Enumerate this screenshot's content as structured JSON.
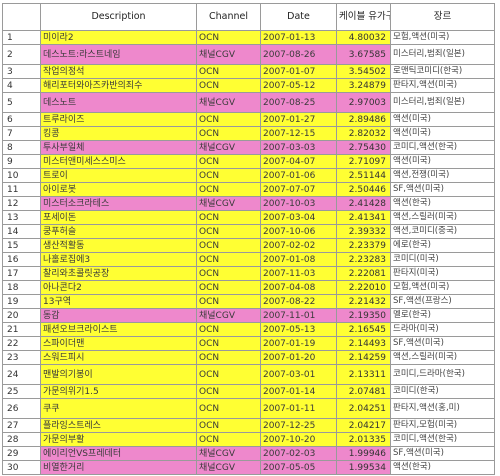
{
  "headers": {
    "num": "",
    "description": "Description",
    "channel": "Channel",
    "date": "Date",
    "rating": "케이블 유가구",
    "genre": "장르"
  },
  "colors": {
    "yellow": "#ffff33",
    "pink": "#ee88cc",
    "border": "#9a9a9a"
  },
  "rows": [
    {
      "num": "1",
      "description": "미이라2",
      "channel": "OCN",
      "date": "2007-01-13",
      "rating": "4.80032",
      "genre": "모험,액션(미국)",
      "color": "yellow"
    },
    {
      "num": "2",
      "description": "데스노트:라스트네임",
      "channel": "채널CGV",
      "date": "2007-08-26",
      "rating": "3.67585",
      "genre": "미스터리,범죄(일본)",
      "color": "pink",
      "tall": true
    },
    {
      "num": "3",
      "description": "작업의정석",
      "channel": "OCN",
      "date": "2007-01-07",
      "rating": "3.54502",
      "genre": "로맨틱코미디(한국)",
      "color": "yellow"
    },
    {
      "num": "4",
      "description": "해리포터와아즈카반의죄수",
      "channel": "OCN",
      "date": "2007-05-12",
      "rating": "3.24879",
      "genre": "판타지,액션(미국)",
      "color": "yellow"
    },
    {
      "num": "5",
      "description": "데스노트",
      "channel": "채널CGV",
      "date": "2007-08-25",
      "rating": "2.97003",
      "genre": "미스터리,범죄(일본)",
      "color": "pink",
      "tall": true
    },
    {
      "num": "6",
      "description": "트루라이즈",
      "channel": "OCN",
      "date": "2007-01-27",
      "rating": "2.89486",
      "genre": "액션(미국)",
      "color": "yellow"
    },
    {
      "num": "7",
      "description": "킹콩",
      "channel": "OCN",
      "date": "2007-12-15",
      "rating": "2.82032",
      "genre": "액션(미국)",
      "color": "yellow"
    },
    {
      "num": "8",
      "description": "투사부일체",
      "channel": "채널CGV",
      "date": "2007-03-03",
      "rating": "2.75430",
      "genre": "코미디,액션(한국)",
      "color": "pink"
    },
    {
      "num": "9",
      "description": "미스터앤미세스스미스",
      "channel": "OCN",
      "date": "2007-04-07",
      "rating": "2.71097",
      "genre": "액션(미국)",
      "color": "yellow"
    },
    {
      "num": "10",
      "description": "트로이",
      "channel": "OCN",
      "date": "2007-01-06",
      "rating": "2.51144",
      "genre": "액션,전쟁(미국)",
      "color": "yellow"
    },
    {
      "num": "11",
      "description": "아이로봇",
      "channel": "OCN",
      "date": "2007-07-07",
      "rating": "2.50446",
      "genre": "SF,액션(미국)",
      "color": "yellow"
    },
    {
      "num": "12",
      "description": "미스터소크라테스",
      "channel": "채널CGV",
      "date": "2007-10-03",
      "rating": "2.41428",
      "genre": "액션(한국)",
      "color": "pink"
    },
    {
      "num": "13",
      "description": "포세이돈",
      "channel": "OCN",
      "date": "2007-03-04",
      "rating": "2.41341",
      "genre": "액션,스릴러(미국)",
      "color": "yellow"
    },
    {
      "num": "14",
      "description": "쿵푸허슬",
      "channel": "OCN",
      "date": "2007-10-06",
      "rating": "2.39332",
      "genre": "액션,코미디(중국)",
      "color": "yellow"
    },
    {
      "num": "15",
      "description": "생산적활동",
      "channel": "OCN",
      "date": "2007-02-02",
      "rating": "2.23379",
      "genre": "에로(한국)",
      "color": "yellow"
    },
    {
      "num": "16",
      "description": "나홀로집에3",
      "channel": "OCN",
      "date": "2007-01-08",
      "rating": "2.23283",
      "genre": "코미디(미국)",
      "color": "yellow"
    },
    {
      "num": "17",
      "description": "찰리와초콜릿공장",
      "channel": "OCN",
      "date": "2007-11-03",
      "rating": "2.22081",
      "genre": "판타지(미국)",
      "color": "yellow"
    },
    {
      "num": "18",
      "description": "아나콘다2",
      "channel": "OCN",
      "date": "2007-04-08",
      "rating": "2.22010",
      "genre": "모험,액션(미국)",
      "color": "yellow"
    },
    {
      "num": "19",
      "description": "13구역",
      "channel": "OCN",
      "date": "2007-08-22",
      "rating": "2.21432",
      "genre": "SF,액션(프랑스)",
      "color": "yellow"
    },
    {
      "num": "20",
      "description": "동감",
      "channel": "채널CGV",
      "date": "2007-11-01",
      "rating": "2.19350",
      "genre": "멜로(한국)",
      "color": "pink"
    },
    {
      "num": "21",
      "description": "패션오브크라이스트",
      "channel": "OCN",
      "date": "2007-05-13",
      "rating": "2.16545",
      "genre": "드라마(미국)",
      "color": "yellow"
    },
    {
      "num": "22",
      "description": "스파이더맨",
      "channel": "OCN",
      "date": "2007-01-19",
      "rating": "2.14493",
      "genre": "SF,액션(미국)",
      "color": "yellow"
    },
    {
      "num": "23",
      "description": "스워드피시",
      "channel": "OCN",
      "date": "2007-01-20",
      "rating": "2.14259",
      "genre": "액션,스릴러(미국)",
      "color": "yellow"
    },
    {
      "num": "24",
      "description": "맨발의기봉이",
      "channel": "OCN",
      "date": "2007-03-01",
      "rating": "2.13311",
      "genre": "코미디,드라마(한국)",
      "color": "yellow",
      "tall": true
    },
    {
      "num": "25",
      "description": "가문의위기1.5",
      "channel": "OCN",
      "date": "2007-01-14",
      "rating": "2.07481",
      "genre": "코미디(한국)",
      "color": "yellow"
    },
    {
      "num": "26",
      "description": "쿠쿠",
      "channel": "OCN",
      "date": "2007-01-11",
      "rating": "2.04251",
      "genre": "판타지,액션(홍,미)",
      "color": "yellow",
      "tall": true
    },
    {
      "num": "27",
      "description": "플라잉스트레스",
      "channel": "OCN",
      "date": "2007-12-25",
      "rating": "2.04217",
      "genre": "판타지,모험(미국)",
      "color": "yellow"
    },
    {
      "num": "28",
      "description": "가문의부활",
      "channel": "OCN",
      "date": "2007-10-20",
      "rating": "2.01335",
      "genre": "코미디,액션(한국)",
      "color": "yellow"
    },
    {
      "num": "29",
      "description": "에이리언VS프레데터",
      "channel": "채널CGV",
      "date": "2007-02-03",
      "rating": "1.99946",
      "genre": "SF,액션(미국)",
      "color": "pink"
    },
    {
      "num": "30",
      "description": "비열한거리",
      "channel": "채널CGV",
      "date": "2007-05-05",
      "rating": "1.99534",
      "genre": "액션(한국)",
      "color": "pink"
    }
  ]
}
